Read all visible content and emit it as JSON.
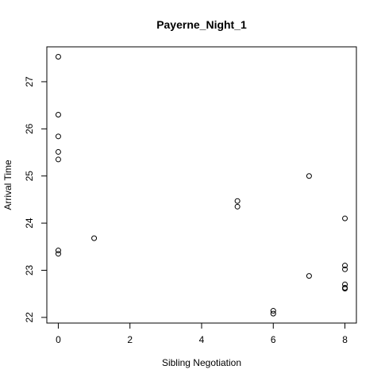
{
  "chart_data": {
    "type": "scatter",
    "title": "Payerne_Night_1",
    "xlabel": "Sibling Negotiation",
    "ylabel": "Arrival Time",
    "xlim": [
      -0.32,
      8.32
    ],
    "ylim": [
      21.88,
      27.74
    ],
    "xticks": [
      0,
      2,
      4,
      6,
      8
    ],
    "yticks": [
      22,
      23,
      24,
      25,
      26,
      27
    ],
    "grid": false,
    "points": [
      {
        "x": 0,
        "y": 27.53
      },
      {
        "x": 0,
        "y": 26.3
      },
      {
        "x": 0,
        "y": 25.84
      },
      {
        "x": 0,
        "y": 25.51
      },
      {
        "x": 0,
        "y": 25.35
      },
      {
        "x": 0,
        "y": 23.42
      },
      {
        "x": 0,
        "y": 23.35
      },
      {
        "x": 1,
        "y": 23.68
      },
      {
        "x": 5,
        "y": 24.47
      },
      {
        "x": 5,
        "y": 24.35
      },
      {
        "x": 6,
        "y": 22.14
      },
      {
        "x": 6,
        "y": 22.08
      },
      {
        "x": 7,
        "y": 25.0
      },
      {
        "x": 7,
        "y": 22.88
      },
      {
        "x": 8,
        "y": 24.1
      },
      {
        "x": 8,
        "y": 23.1
      },
      {
        "x": 8,
        "y": 23.02
      },
      {
        "x": 8,
        "y": 22.7
      },
      {
        "x": 8,
        "y": 22.63
      },
      {
        "x": 8,
        "y": 22.61
      }
    ]
  }
}
